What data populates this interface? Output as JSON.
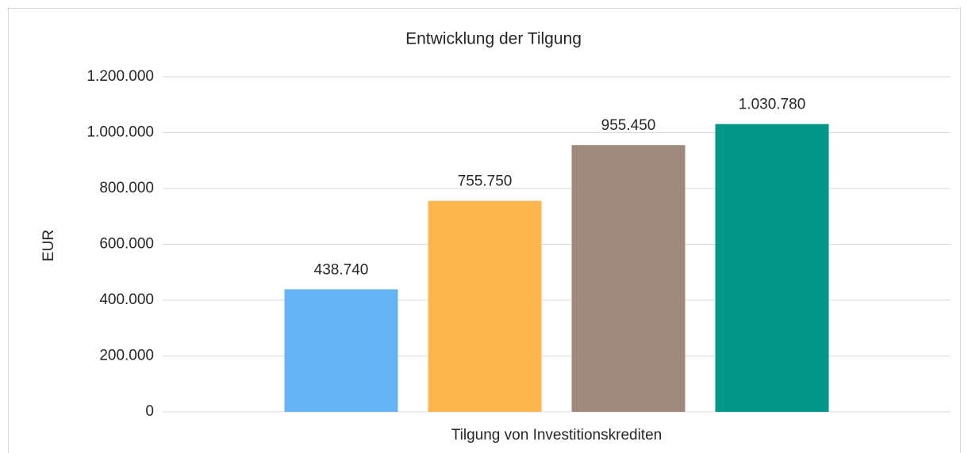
{
  "chart_data": {
    "type": "bar",
    "title": "Entwicklung der Tilgung",
    "y_label": "EUR",
    "categories": [
      "Tilgung von Investitionskrediten"
    ],
    "series": [
      {
        "color": "#63b3f5",
        "values": [
          438740
        ],
        "value_labels": [
          "438.740"
        ]
      },
      {
        "color": "#fdb64e",
        "values": [
          755750
        ],
        "value_labels": [
          "755.750"
        ]
      },
      {
        "color": "#a0887b",
        "values": [
          955450
        ],
        "value_labels": [
          "955.450"
        ]
      },
      {
        "color": "#009688",
        "values": [
          1030780
        ],
        "value_labels": [
          "1.030.780"
        ]
      }
    ],
    "ylim": [
      0,
      1200000
    ],
    "yticks": [
      0,
      {
        "value": 200000,
        "label": "200.000"
      },
      {
        "value": 400000,
        "label": "400.000"
      },
      {
        "value": 600000,
        "label": "600.000"
      },
      {
        "value": 800000,
        "label": "800.000"
      },
      {
        "value": 1000000,
        "label": "1.000.000"
      },
      {
        "value": 1200000,
        "label": "1.200.000"
      }
    ],
    "grid": true
  }
}
